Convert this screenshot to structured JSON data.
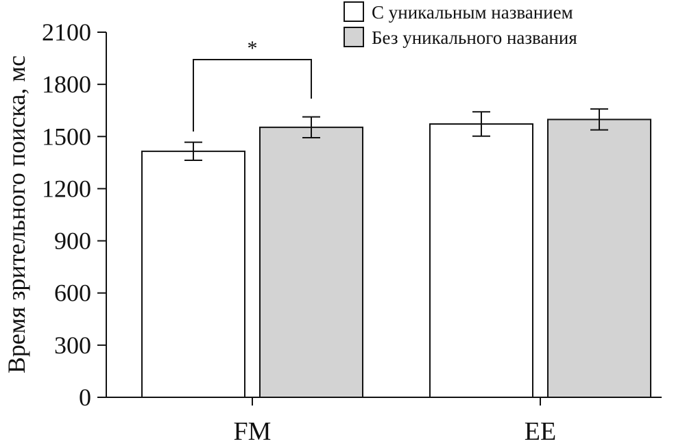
{
  "chart_data": {
    "type": "bar",
    "title": "",
    "xlabel": "",
    "ylabel": "Время зрительного поиска, мс",
    "ylim": [
      0,
      2100
    ],
    "yticks": [
      0,
      300,
      600,
      900,
      1200,
      1500,
      1800,
      2100
    ],
    "categories": [
      "FM",
      "EE"
    ],
    "series": [
      {
        "name": "С уникальным названием",
        "color": "#ffffff",
        "values": [
          1415,
          1572
        ],
        "errors": [
          52,
          70
        ]
      },
      {
        "name": "Без уникального названия",
        "color": "#d3d3d3",
        "values": [
          1553,
          1598
        ],
        "errors": [
          60,
          60
        ]
      }
    ],
    "legend_position": "top-right",
    "grid": false,
    "significance": [
      {
        "category": "FM",
        "label": "*"
      }
    ]
  }
}
